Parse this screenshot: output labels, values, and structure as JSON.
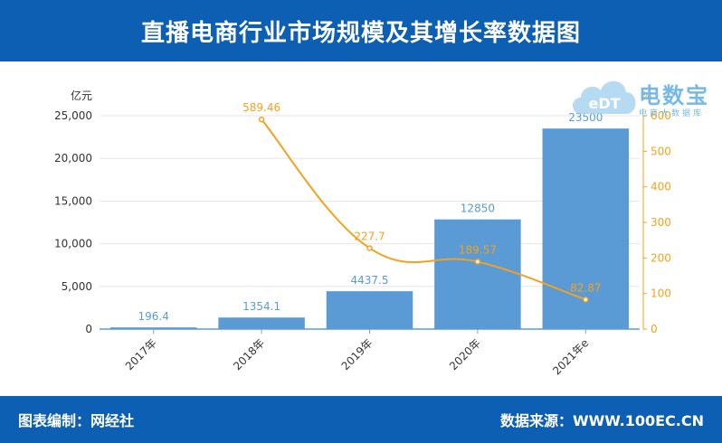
{
  "header": {
    "title": "直播电商行业市场规模及其增长率数据图"
  },
  "footer": {
    "left": "图表编制：网经社",
    "right": "数据来源：WWW.100EC.CN"
  },
  "logo": {
    "badge": "eDT",
    "main": "电数宝",
    "sub": "电商大数据库"
  },
  "colors": {
    "header_bg": "#0d5fb3",
    "bar": "#5b9bd5",
    "line": "#f5a11c",
    "bar_label": "#5b9bd5",
    "line_label": "#f5a11c"
  },
  "chart_data": {
    "type": "bar",
    "categories": [
      "2017年",
      "2018年",
      "2019年",
      "2020年",
      "2021年e"
    ],
    "series": [
      {
        "type": "bar",
        "axis": "left",
        "values": [
          196.4,
          1354.1,
          4437.5,
          12850,
          23500
        ]
      },
      {
        "type": "line",
        "axis": "right",
        "values": [
          null,
          589.46,
          227.7,
          189.57,
          82.87
        ]
      }
    ],
    "y_left": {
      "label": "亿元",
      "range": [
        0,
        25000
      ],
      "ticks": [
        "0",
        "5,000",
        "10,000",
        "15,000",
        "20,000",
        "25,000"
      ]
    },
    "y_right": {
      "label": "%",
      "range": [
        0,
        600
      ],
      "ticks": [
        "0",
        "100",
        "200",
        "300",
        "400",
        "500",
        "600"
      ]
    },
    "grid": true
  }
}
